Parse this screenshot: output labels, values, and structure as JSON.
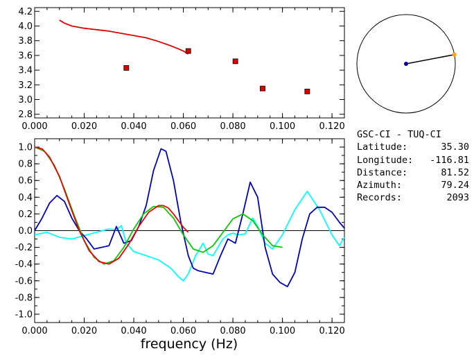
{
  "info": {
    "title": "GSC-CI  -  TUQ-CI",
    "fields": [
      {
        "label": "Latitude:",
        "value": "35.30"
      },
      {
        "label": "Longitude:",
        "value": "-116.81"
      },
      {
        "label": "Distance:",
        "value": "81.52"
      },
      {
        "label": "Azimuth:",
        "value": "79.24"
      },
      {
        "label": "Records:",
        "value": "2093"
      }
    ]
  },
  "map": {
    "azimuth_deg": 79.24,
    "circle_color": "#000000",
    "line_color": "#000000",
    "station_color": "#00008b",
    "endpoint_color": "#ffa500"
  },
  "chart_data": [
    {
      "type": "scatter",
      "xlim": [
        0.0,
        0.125
      ],
      "ylim": [
        2.75,
        4.25
      ],
      "xticks": [
        "0.000",
        "0.020",
        "0.040",
        "0.060",
        "0.080",
        "0.100",
        "0.120"
      ],
      "yticks": [
        "2.8",
        "3.0",
        "3.2",
        "3.4",
        "3.6",
        "3.8",
        "4.0",
        "4.2"
      ],
      "xlabel": "",
      "ylabel": "",
      "curve": {
        "color": "#dd0000",
        "x": [
          0.01,
          0.012,
          0.015,
          0.02,
          0.025,
          0.03,
          0.035,
          0.04,
          0.045,
          0.05,
          0.055,
          0.058,
          0.06,
          0.062
        ],
        "y": [
          4.08,
          4.04,
          4.0,
          3.97,
          3.95,
          3.93,
          3.9,
          3.87,
          3.84,
          3.79,
          3.73,
          3.69,
          3.66,
          3.62
        ]
      },
      "points": {
        "color": "#dd0000",
        "x": [
          0.037,
          0.062,
          0.081,
          0.092,
          0.11
        ],
        "y": [
          3.43,
          3.66,
          3.52,
          3.15,
          3.11
        ]
      }
    },
    {
      "type": "line",
      "xlim": [
        0.0,
        0.125
      ],
      "ylim": [
        -1.1,
        1.1
      ],
      "xticks": [
        "0.000",
        "0.020",
        "0.040",
        "0.060",
        "0.080",
        "0.100",
        "0.120"
      ],
      "yticks": [
        "-1.0",
        "-0.8",
        "-0.6",
        "-0.4",
        "-0.2",
        "0.0",
        "0.2",
        "0.4",
        "0.6",
        "0.8",
        "1.0"
      ],
      "xlabel": "frequency (Hz)",
      "ylabel": "",
      "zero_line": true,
      "series": [
        {
          "color": "#00ffff",
          "x": [
            0.0,
            0.005,
            0.01,
            0.015,
            0.02,
            0.025,
            0.03,
            0.033,
            0.035,
            0.037,
            0.04,
            0.045,
            0.05,
            0.055,
            0.058,
            0.06,
            0.062,
            0.065,
            0.068,
            0.07,
            0.072,
            0.074,
            0.076,
            0.078,
            0.08,
            0.082,
            0.085,
            0.088,
            0.09,
            0.093,
            0.096,
            0.1,
            0.105,
            0.11,
            0.115,
            0.12,
            0.123,
            0.125
          ],
          "y": [
            -0.05,
            -0.02,
            -0.08,
            -0.1,
            -0.06,
            -0.02,
            0.02,
            0.01,
            0.06,
            -0.15,
            -0.25,
            -0.3,
            -0.35,
            -0.45,
            -0.55,
            -0.6,
            -0.52,
            -0.3,
            -0.15,
            -0.28,
            -0.3,
            -0.2,
            -0.1,
            -0.05,
            -0.03,
            -0.05,
            -0.04,
            0.15,
            0.05,
            -0.15,
            -0.22,
            -0.05,
            0.25,
            0.47,
            0.25,
            -0.05,
            -0.18,
            -0.08
          ]
        },
        {
          "color": "#0000bb",
          "x": [
            0.0,
            0.003,
            0.006,
            0.009,
            0.012,
            0.015,
            0.018,
            0.021,
            0.024,
            0.027,
            0.03,
            0.033,
            0.036,
            0.039,
            0.042,
            0.045,
            0.048,
            0.051,
            0.053,
            0.056,
            0.059,
            0.062,
            0.064,
            0.066,
            0.069,
            0.072,
            0.075,
            0.078,
            0.081,
            0.084,
            0.087,
            0.09,
            0.093,
            0.096,
            0.099,
            0.102,
            0.105,
            0.108,
            0.111,
            0.114,
            0.117,
            0.12,
            0.123,
            0.125
          ],
          "y": [
            0.0,
            0.15,
            0.33,
            0.42,
            0.35,
            0.15,
            0.0,
            -0.1,
            -0.22,
            -0.2,
            -0.18,
            0.05,
            -0.15,
            -0.12,
            0.05,
            0.3,
            0.72,
            0.98,
            0.95,
            0.6,
            0.1,
            -0.3,
            -0.45,
            -0.48,
            -0.5,
            -0.52,
            -0.3,
            -0.1,
            -0.15,
            0.2,
            0.58,
            0.4,
            -0.2,
            -0.52,
            -0.62,
            -0.67,
            -0.5,
            -0.1,
            0.2,
            0.28,
            0.28,
            0.22,
            0.1,
            0.03
          ]
        },
        {
          "color": "#00cc00",
          "x": [
            0.0,
            0.004,
            0.008,
            0.012,
            0.016,
            0.02,
            0.024,
            0.028,
            0.032,
            0.036,
            0.04,
            0.044,
            0.048,
            0.052,
            0.056,
            0.06,
            0.064,
            0.068,
            0.072,
            0.076,
            0.08,
            0.084,
            0.088,
            0.092,
            0.096,
            0.1
          ],
          "y": [
            1.0,
            0.95,
            0.78,
            0.5,
            0.18,
            -0.12,
            -0.32,
            -0.4,
            -0.36,
            -0.2,
            0.02,
            0.2,
            0.29,
            0.28,
            0.15,
            -0.05,
            -0.22,
            -0.26,
            -0.18,
            -0.02,
            0.14,
            0.2,
            0.12,
            -0.05,
            -0.18,
            -0.2
          ]
        },
        {
          "color": "#ee0000",
          "x": [
            0.0,
            0.003,
            0.006,
            0.01,
            0.014,
            0.018,
            0.022,
            0.026,
            0.03,
            0.034,
            0.038,
            0.042,
            0.046,
            0.05,
            0.052,
            0.054,
            0.056,
            0.058,
            0.06,
            0.062
          ],
          "y": [
            1.0,
            0.98,
            0.88,
            0.65,
            0.32,
            0.0,
            -0.24,
            -0.37,
            -0.4,
            -0.33,
            -0.16,
            0.05,
            0.22,
            0.3,
            0.3,
            0.27,
            0.2,
            0.12,
            0.04,
            -0.02
          ]
        }
      ]
    }
  ]
}
